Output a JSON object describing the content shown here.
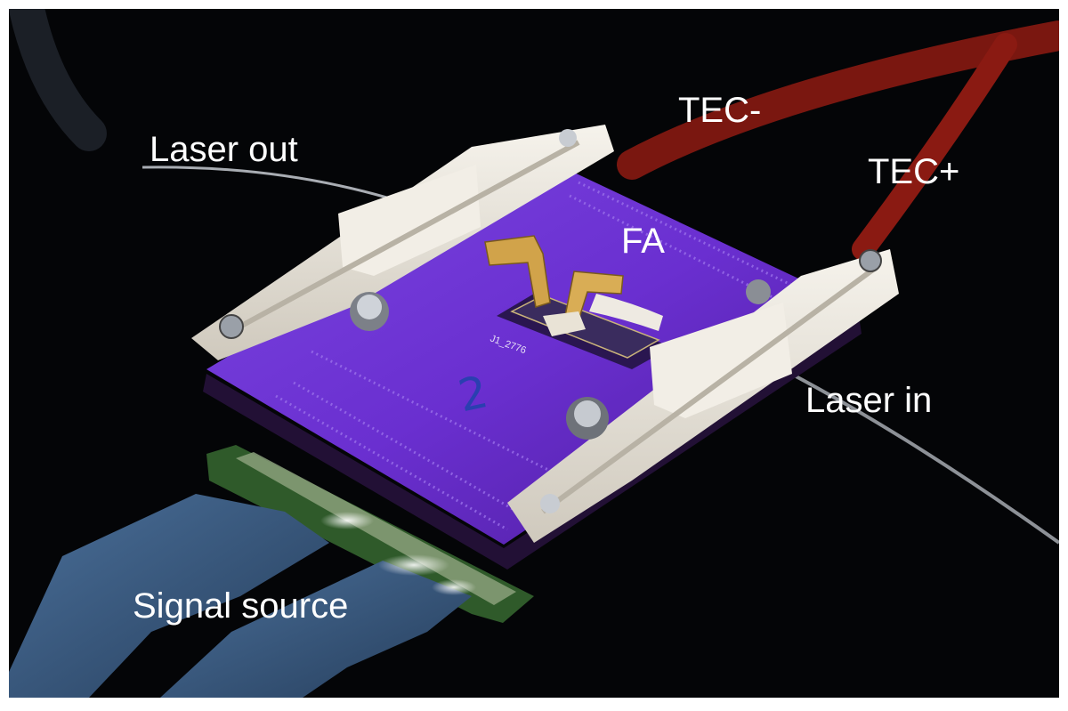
{
  "labels": {
    "laser_out": "Laser out",
    "tec_minus": "TEC-",
    "tec_plus": "TEC+",
    "fa": "FA",
    "laser_in": "Laser in",
    "signal_source": "Signal source"
  },
  "board_marks": {
    "chip_id": "J1_2776",
    "handwritten_number": "2"
  },
  "colors": {
    "background": "#040507",
    "board_purple": "#6a2fd0",
    "clamp_white": "#ece8df",
    "tec_wire_red": "#8a1a12",
    "ribbon_blue": "#3c5f86",
    "connector_green": "#2f5a2a",
    "gold_probe": "#d1a34a",
    "label_text": "#ffffff"
  }
}
